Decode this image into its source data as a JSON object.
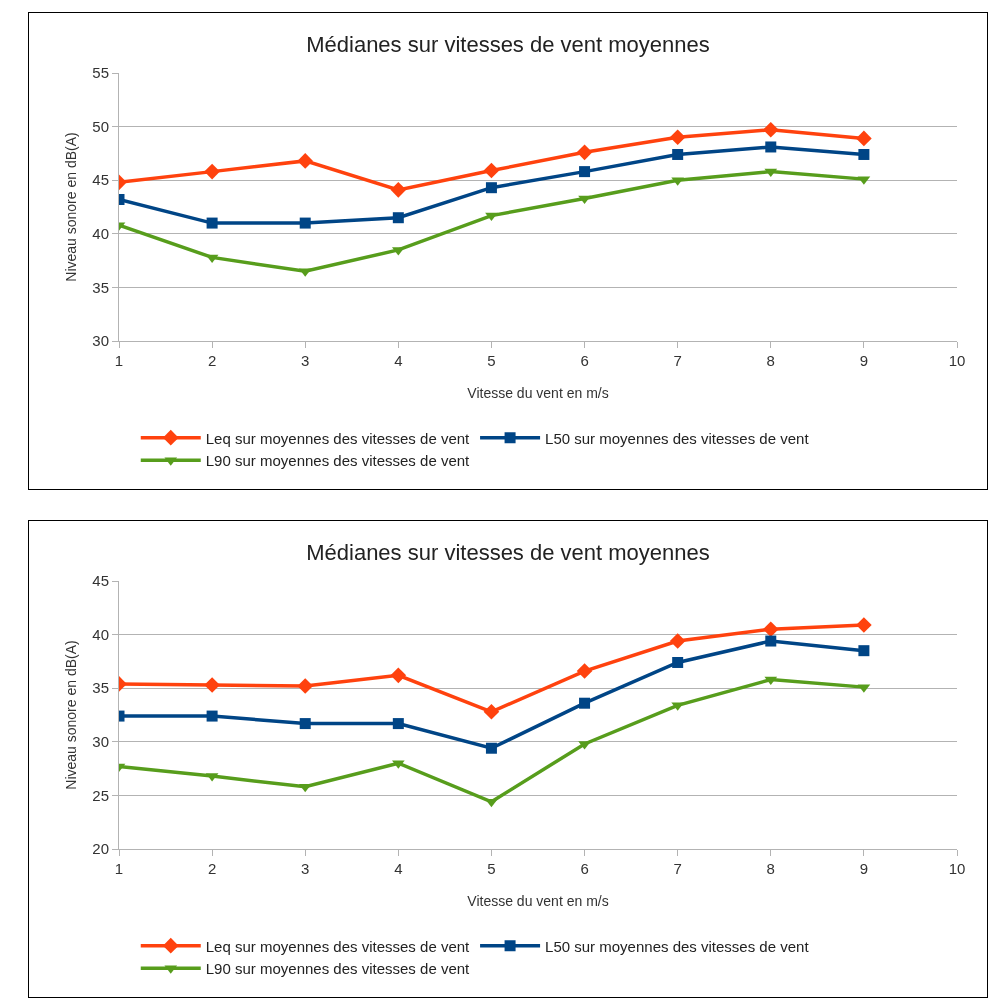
{
  "chart_data": [
    {
      "type": "line",
      "title": "Médianes sur vitesses de vent moyennes",
      "xlabel": "Vitesse du vent en m/s",
      "ylabel": "Niveau sonore en dB(A)",
      "x": [
        1,
        2,
        3,
        4,
        5,
        6,
        7,
        8,
        9
      ],
      "xlim": [
        1,
        10
      ],
      "xticks": [
        1,
        2,
        3,
        4,
        5,
        6,
        7,
        8,
        9,
        10
      ],
      "ylim": [
        30,
        55
      ],
      "yticks": [
        30,
        35,
        40,
        45,
        50,
        55
      ],
      "grid": "y",
      "legend": "bottom",
      "series": [
        {
          "name": "Leq sur moyennes des vitesses de vent",
          "color": "#ff420e",
          "marker": "diamond",
          "values": [
            44.8,
            45.8,
            46.8,
            44.1,
            45.9,
            47.6,
            49.0,
            49.7,
            48.9
          ]
        },
        {
          "name": "L50 sur moyennes des vitesses de vent",
          "color": "#004586",
          "marker": "square",
          "values": [
            43.2,
            41.0,
            41.0,
            41.5,
            44.3,
            45.8,
            47.4,
            48.1,
            47.4
          ]
        },
        {
          "name": "L90 sur moyennes des vitesses de vent",
          "color": "#579d1c",
          "marker": "triangle",
          "values": [
            40.8,
            37.8,
            36.5,
            38.5,
            41.7,
            43.3,
            45.0,
            45.8,
            45.1
          ]
        }
      ]
    },
    {
      "type": "line",
      "title": "Médianes sur vitesses de vent moyennes",
      "xlabel": "Vitesse du vent en m/s",
      "ylabel": "Niveau sonore en dB(A)",
      "x": [
        1,
        2,
        3,
        4,
        5,
        6,
        7,
        8,
        9
      ],
      "xlim": [
        1,
        10
      ],
      "xticks": [
        1,
        2,
        3,
        4,
        5,
        6,
        7,
        8,
        9,
        10
      ],
      "ylim": [
        20,
        45
      ],
      "yticks": [
        20,
        25,
        30,
        35,
        40,
        45
      ],
      "grid": "y",
      "legend": "bottom",
      "series": [
        {
          "name": "Leq sur moyennes des vitesses de vent",
          "color": "#ff420e",
          "marker": "diamond",
          "values": [
            35.4,
            35.3,
            35.2,
            36.2,
            32.8,
            36.6,
            39.4,
            40.5,
            40.9
          ]
        },
        {
          "name": "L50 sur moyennes des vitesses de vent",
          "color": "#004586",
          "marker": "square",
          "values": [
            32.4,
            32.4,
            31.7,
            31.7,
            29.4,
            33.6,
            37.4,
            39.4,
            38.5
          ]
        },
        {
          "name": "L90 sur moyennes des vitesses de vent",
          "color": "#579d1c",
          "marker": "triangle",
          "values": [
            27.7,
            26.8,
            25.8,
            28.0,
            24.4,
            29.8,
            33.4,
            35.8,
            35.1
          ]
        }
      ]
    }
  ]
}
